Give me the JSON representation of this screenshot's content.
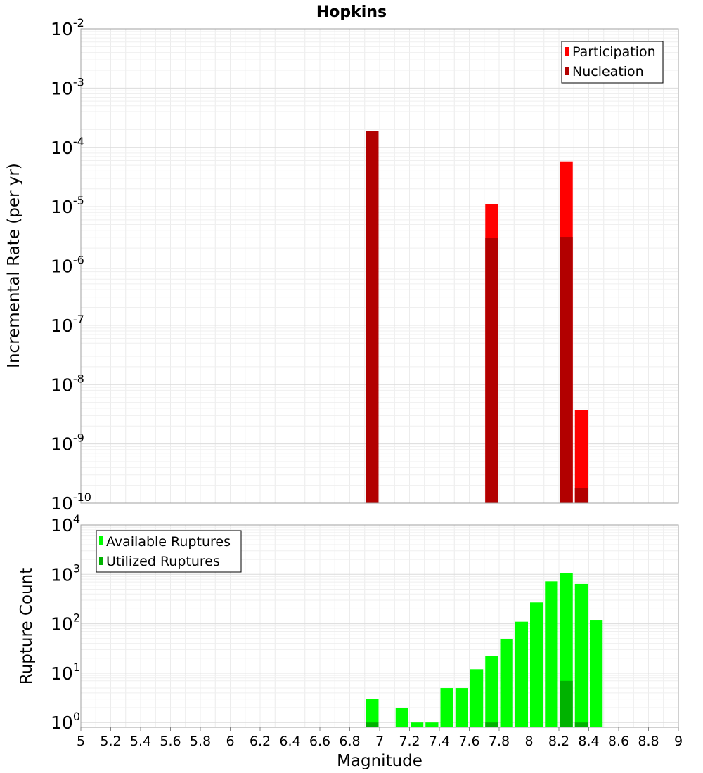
{
  "chart_data": [
    {
      "type": "bar",
      "panel": "top",
      "title": "Hopkins",
      "ylabel": "Incremental Rate (per yr)",
      "xlabel": "",
      "xlim": [
        5,
        9
      ],
      "ylim": [
        1e-10,
        0.01
      ],
      "yscale": "log",
      "bin_width": 0.1,
      "y_ticks": [
        {
          "base": "10",
          "exp": "-2",
          "value": 0.01
        },
        {
          "base": "10",
          "exp": "-3",
          "value": 0.001
        },
        {
          "base": "10",
          "exp": "-4",
          "value": 0.0001
        },
        {
          "base": "10",
          "exp": "-5",
          "value": 1e-05
        },
        {
          "base": "10",
          "exp": "-6",
          "value": 1e-06
        },
        {
          "base": "10",
          "exp": "-7",
          "value": 1e-07
        },
        {
          "base": "10",
          "exp": "-8",
          "value": 1e-08
        },
        {
          "base": "10",
          "exp": "-9",
          "value": 1e-09
        },
        {
          "base": "10",
          "exp": "-10",
          "value": 1e-10
        }
      ],
      "legend_position": "top-right",
      "series": [
        {
          "name": "Participation",
          "color": "#ff0000",
          "x": [
            6.95,
            7.75,
            8.25,
            8.35
          ],
          "values": [
            0.00019,
            1.1e-05,
            5.8e-05,
            3.7e-09
          ]
        },
        {
          "name": "Nucleation",
          "color": "#b20000",
          "x": [
            6.95,
            7.75,
            8.25,
            8.35
          ],
          "values": [
            0.00019,
            3e-06,
            3.1e-06,
            1.8e-10
          ]
        }
      ],
      "grid": true
    },
    {
      "type": "bar",
      "panel": "bottom",
      "ylabel": "Rupture Count",
      "xlabel": "Magnitude",
      "xlim": [
        5,
        9
      ],
      "ylim": [
        0.8,
        10000
      ],
      "yscale": "log",
      "bin_width": 0.1,
      "x_ticks": [
        "5",
        "5.2",
        "5.4",
        "5.6",
        "5.8",
        "6",
        "6.2",
        "6.4",
        "6.6",
        "6.8",
        "7",
        "7.2",
        "7.4",
        "7.6",
        "7.8",
        "8",
        "8.2",
        "8.4",
        "8.6",
        "8.8",
        "9"
      ],
      "y_ticks": [
        {
          "base": "10",
          "exp": "4",
          "value": 10000
        },
        {
          "base": "10",
          "exp": "3",
          "value": 1000
        },
        {
          "base": "10",
          "exp": "2",
          "value": 100
        },
        {
          "base": "10",
          "exp": "1",
          "value": 10
        },
        {
          "base": "10",
          "exp": "0",
          "value": 1
        }
      ],
      "legend_position": "top-left",
      "series": [
        {
          "name": "Available Ruptures",
          "color": "#00ff00",
          "x": [
            6.95,
            7.15,
            7.25,
            7.35,
            7.45,
            7.55,
            7.65,
            7.75,
            7.85,
            7.95,
            8.05,
            8.15,
            8.25,
            8.35,
            8.45
          ],
          "values": [
            3,
            2,
            1,
            1,
            5,
            5,
            12,
            22,
            48,
            110,
            270,
            720,
            1050,
            640,
            120
          ]
        },
        {
          "name": "Utilized Ruptures",
          "color": "#00b200",
          "x": [
            6.95,
            7.75,
            8.25,
            8.35
          ],
          "values": [
            1,
            1,
            7,
            1
          ]
        }
      ],
      "grid": true
    }
  ]
}
